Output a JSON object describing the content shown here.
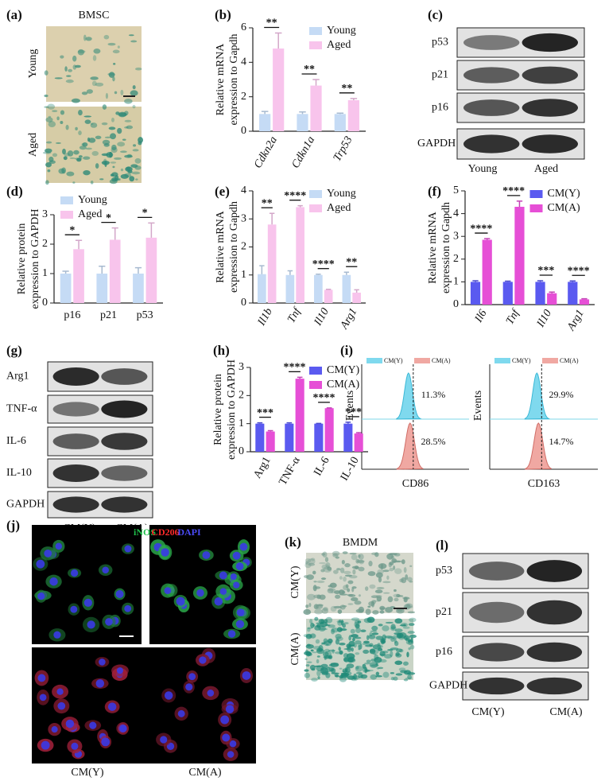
{
  "panel_a": {
    "label": "(a)",
    "title": "BMSC",
    "rows": [
      "Young",
      "Aged"
    ]
  },
  "panel_c": {
    "label": "(c)",
    "bands": [
      "p53",
      "p21",
      "p16",
      "GAPDH"
    ],
    "lanes": [
      "Young",
      "Aged"
    ]
  },
  "panel_g": {
    "label": "(g)",
    "bands": [
      "Arg1",
      "TNF-α",
      "IL-6",
      "IL-10",
      "GAPDH"
    ],
    "lanes": [
      "CM(Y)",
      "CM(A)"
    ]
  },
  "panel_i": {
    "label": "(i)",
    "legend": [
      "CM(Y)",
      "CM(A)"
    ],
    "y_label": "Events",
    "plots": [
      {
        "marker": "CD86",
        "percent": [
          "11.3%",
          "28.5%"
        ]
      },
      {
        "marker": "CD163",
        "percent": [
          "29.9%",
          "14.7%"
        ]
      }
    ]
  },
  "panel_j": {
    "label": "(j)",
    "stains": [
      "iNOS",
      "CD206",
      "DAPI"
    ],
    "columns": [
      "CM(Y)",
      "CM(A)"
    ]
  },
  "panel_k": {
    "label": "(k)",
    "title": "BMDM",
    "rows": [
      "CM(Y)",
      "CM(A)"
    ]
  },
  "panel_l": {
    "label": "(l)",
    "bands": [
      "p53",
      "p21",
      "p16",
      "GAPDH"
    ],
    "lanes": [
      "CM(Y)",
      "CM(A)"
    ]
  },
  "chart_data": [
    {
      "type": "bar",
      "label": "(b)",
      "ylabel": [
        "Relative mRNA",
        "expression to Gapdh"
      ],
      "categories": [
        "Cdkn2a",
        "Cdkn1a",
        "Trp53"
      ],
      "rotate_labels": true,
      "italic_categories": true,
      "series": [
        {
          "name": "Young",
          "color": "#c5dbf5",
          "values": [
            1,
            1,
            1
          ],
          "errors": [
            0.15,
            0.12,
            0.05
          ]
        },
        {
          "name": "Aged",
          "color": "#f8c4ec",
          "values": [
            4.8,
            2.65,
            1.8
          ],
          "errors": [
            0.9,
            0.35,
            0.1
          ]
        }
      ],
      "significance": [
        "**",
        "**",
        "**"
      ],
      "ylim": [
        0,
        6
      ],
      "yticks": [
        0,
        2,
        4,
        6
      ],
      "legend": "upper right"
    },
    {
      "type": "bar",
      "label": "(d)",
      "ylabel": [
        "Relative protein",
        "expression to GAPDH"
      ],
      "categories": [
        "p16",
        "p21",
        "p53"
      ],
      "rotate_labels": false,
      "italic_categories": false,
      "series": [
        {
          "name": "Young",
          "color": "#c5dbf5",
          "values": [
            1,
            1,
            1
          ],
          "errors": [
            0.08,
            0.25,
            0.2
          ]
        },
        {
          "name": "Aged",
          "color": "#f8c4ec",
          "values": [
            1.83,
            2.15,
            2.22
          ],
          "errors": [
            0.3,
            0.4,
            0.5
          ]
        }
      ],
      "significance": [
        "*",
        "*",
        "*"
      ],
      "ylim": [
        0,
        3
      ],
      "yticks": [
        0,
        1,
        2,
        3
      ],
      "legend": "upper left"
    },
    {
      "type": "bar",
      "label": "(e)",
      "ylabel": [
        "Relative mRNA",
        "expression to Gapdh"
      ],
      "categories": [
        "Il1b",
        "Tnf",
        "Il10",
        "Arg1"
      ],
      "rotate_labels": true,
      "italic_categories": true,
      "series": [
        {
          "name": "Young",
          "color": "#c5dbf5",
          "values": [
            1.03,
            1,
            1,
            1
          ],
          "errors": [
            0.3,
            0.15,
            0.03,
            0.1
          ]
        },
        {
          "name": "Aged",
          "color": "#f8c4ec",
          "values": [
            2.8,
            3.42,
            0.47,
            0.37
          ],
          "errors": [
            0.4,
            0.05,
            0.02,
            0.1
          ]
        }
      ],
      "significance": [
        "**",
        "****",
        "****",
        "**"
      ],
      "ylim": [
        0,
        4
      ],
      "yticks": [
        0,
        1,
        2,
        3,
        4
      ],
      "legend": "upper right"
    },
    {
      "type": "bar",
      "label": "(f)",
      "ylabel": [
        "Relative mRNA",
        "expression to Gapdh"
      ],
      "categories": [
        "Il6",
        "Tnf",
        "Il10",
        "Arg1"
      ],
      "rotate_labels": true,
      "italic_categories": true,
      "series": [
        {
          "name": "CM(Y)",
          "color": "#5a5af0",
          "values": [
            1,
            1,
            1,
            1
          ],
          "errors": [
            0.05,
            0.03,
            0.05,
            0.04
          ]
        },
        {
          "name": "CM(A)",
          "color": "#e64fd6",
          "values": [
            2.85,
            4.3,
            0.5,
            0.23
          ],
          "errors": [
            0.05,
            0.25,
            0.05,
            0.03
          ]
        }
      ],
      "significance": [
        "****",
        "****",
        "***",
        "****"
      ],
      "ylim": [
        0,
        5
      ],
      "yticks": [
        0,
        1,
        2,
        3,
        4,
        5
      ],
      "legend": "upper right"
    },
    {
      "type": "bar",
      "label": "(h)",
      "ylabel": [
        "Relative protein",
        "expression to GAPDH"
      ],
      "categories": [
        "Arg1",
        "TNF-α",
        "IL-6",
        "IL-10"
      ],
      "rotate_labels": true,
      "italic_categories": false,
      "series": [
        {
          "name": "CM(Y)",
          "color": "#5a5af0",
          "values": [
            1,
            1,
            1,
            1
          ],
          "errors": [
            0.03,
            0.03,
            0.01,
            0.05
          ]
        },
        {
          "name": "CM(A)",
          "color": "#e64fd6",
          "values": [
            0.72,
            2.6,
            1.55,
            0.65
          ],
          "errors": [
            0.03,
            0.05,
            0.01,
            0.03
          ]
        }
      ],
      "significance": [
        "***",
        "****",
        "****",
        "***"
      ],
      "ylim": [
        0,
        3
      ],
      "yticks": [
        0,
        1,
        2,
        3
      ],
      "legend": "upper right"
    }
  ]
}
